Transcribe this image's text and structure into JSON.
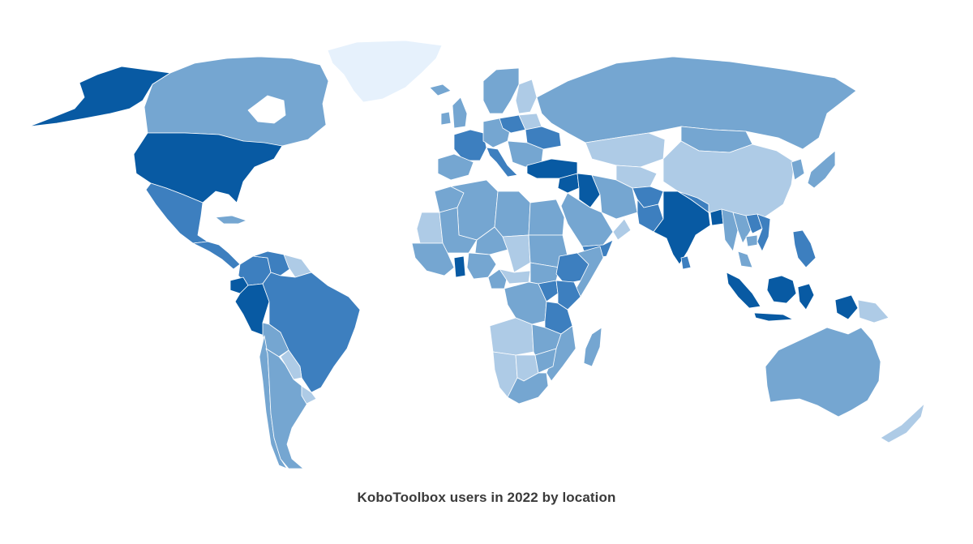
{
  "caption": "KoboToolbox users in 2022 by location",
  "palette": {
    "very_low": "#e6f1fc",
    "low": "#aecbe6",
    "medium": "#75a6d1",
    "high": "#3d7fbf",
    "very_high": "#085aa3"
  },
  "regions": [
    {
      "name": "Greenland",
      "level": "very_low"
    },
    {
      "name": "Alaska",
      "level": "very_high"
    },
    {
      "name": "Canada",
      "level": "medium"
    },
    {
      "name": "Hudson Bay",
      "level": "water"
    },
    {
      "name": "United States",
      "level": "very_high"
    },
    {
      "name": "Mexico",
      "level": "high"
    },
    {
      "name": "Central America",
      "level": "high"
    },
    {
      "name": "Cuba",
      "level": "medium"
    },
    {
      "name": "Colombia",
      "level": "high"
    },
    {
      "name": "Venezuela",
      "level": "high"
    },
    {
      "name": "Guianas",
      "level": "low"
    },
    {
      "name": "Ecuador",
      "level": "very_high"
    },
    {
      "name": "Peru",
      "level": "very_high"
    },
    {
      "name": "Brazil",
      "level": "high"
    },
    {
      "name": "Bolivia",
      "level": "medium"
    },
    {
      "name": "Paraguay",
      "level": "low"
    },
    {
      "name": "Chile",
      "level": "medium"
    },
    {
      "name": "Argentina",
      "level": "medium"
    },
    {
      "name": "Uruguay",
      "level": "low"
    },
    {
      "name": "Iceland",
      "level": "medium"
    },
    {
      "name": "Scandinavia",
      "level": "medium"
    },
    {
      "name": "Finland",
      "level": "low"
    },
    {
      "name": "United Kingdom",
      "level": "medium"
    },
    {
      "name": "Ireland",
      "level": "medium"
    },
    {
      "name": "France",
      "level": "high"
    },
    {
      "name": "Spain and Portugal",
      "level": "medium"
    },
    {
      "name": "Central Europe",
      "level": "medium"
    },
    {
      "name": "Poland",
      "level": "high"
    },
    {
      "name": "Belarus",
      "level": "low"
    },
    {
      "name": "Ukraine",
      "level": "high"
    },
    {
      "name": "Italy",
      "level": "high"
    },
    {
      "name": "Balkans",
      "level": "medium"
    },
    {
      "name": "Turkey",
      "level": "very_high"
    },
    {
      "name": "Russia",
      "level": "medium"
    },
    {
      "name": "Kazakhstan",
      "level": "low"
    },
    {
      "name": "Central Asia",
      "level": "low"
    },
    {
      "name": "Mongolia",
      "level": "medium"
    },
    {
      "name": "China",
      "level": "low"
    },
    {
      "name": "Korea",
      "level": "medium"
    },
    {
      "name": "Japan",
      "level": "medium"
    },
    {
      "name": "Syria",
      "level": "very_high"
    },
    {
      "name": "Iraq",
      "level": "very_high"
    },
    {
      "name": "Iran",
      "level": "medium"
    },
    {
      "name": "Afghanistan",
      "level": "high"
    },
    {
      "name": "Pakistan",
      "level": "high"
    },
    {
      "name": "Saudi Arabia",
      "level": "medium"
    },
    {
      "name": "Yemen",
      "level": "high"
    },
    {
      "name": "Oman",
      "level": "low"
    },
    {
      "name": "India",
      "level": "very_high"
    },
    {
      "name": "Nepal",
      "level": "high"
    },
    {
      "name": "Bangladesh",
      "level": "very_high"
    },
    {
      "name": "Sri Lanka",
      "level": "high"
    },
    {
      "name": "Myanmar",
      "level": "medium"
    },
    {
      "name": "Thailand",
      "level": "medium"
    },
    {
      "name": "Laos",
      "level": "high"
    },
    {
      "name": "Vietnam",
      "level": "high"
    },
    {
      "name": "Cambodia",
      "level": "medium"
    },
    {
      "name": "Malaysia",
      "level": "medium"
    },
    {
      "name": "Philippines",
      "level": "high"
    },
    {
      "name": "Sumatra",
      "level": "very_high"
    },
    {
      "name": "Java",
      "level": "very_high"
    },
    {
      "name": "Borneo",
      "level": "very_high"
    },
    {
      "name": "Sulawesi",
      "level": "very_high"
    },
    {
      "name": "New Guinea west",
      "level": "very_high"
    },
    {
      "name": "Papua New Guinea",
      "level": "low"
    },
    {
      "name": "Australia",
      "level": "medium"
    },
    {
      "name": "New Zealand",
      "level": "low"
    },
    {
      "name": "Morocco",
      "level": "medium"
    },
    {
      "name": "Algeria",
      "level": "medium"
    },
    {
      "name": "Libya",
      "level": "medium"
    },
    {
      "name": "Egypt",
      "level": "medium"
    },
    {
      "name": "Mauritania",
      "level": "low"
    },
    {
      "name": "Mali",
      "level": "medium"
    },
    {
      "name": "Niger",
      "level": "medium"
    },
    {
      "name": "Chad",
      "level": "low"
    },
    {
      "name": "Sudan",
      "level": "medium"
    },
    {
      "name": "West Africa coast",
      "level": "medium"
    },
    {
      "name": "Ghana",
      "level": "very_high"
    },
    {
      "name": "Nigeria",
      "level": "medium"
    },
    {
      "name": "Cameroon",
      "level": "medium"
    },
    {
      "name": "Central African Republic",
      "level": "low"
    },
    {
      "name": "South Sudan",
      "level": "medium"
    },
    {
      "name": "Ethiopia",
      "level": "high"
    },
    {
      "name": "Somalia",
      "level": "medium"
    },
    {
      "name": "DR Congo",
      "level": "medium"
    },
    {
      "name": "Uganda",
      "level": "high"
    },
    {
      "name": "Kenya",
      "level": "high"
    },
    {
      "name": "Tanzania",
      "level": "high"
    },
    {
      "name": "Angola",
      "level": "low"
    },
    {
      "name": "Zambia",
      "level": "medium"
    },
    {
      "name": "Mozambique",
      "level": "medium"
    },
    {
      "name": "Namibia",
      "level": "low"
    },
    {
      "name": "Botswana",
      "level": "low"
    },
    {
      "name": "Zimbabwe",
      "level": "medium"
    },
    {
      "name": "South Africa",
      "level": "medium"
    },
    {
      "name": "Madagascar",
      "level": "medium"
    }
  ]
}
